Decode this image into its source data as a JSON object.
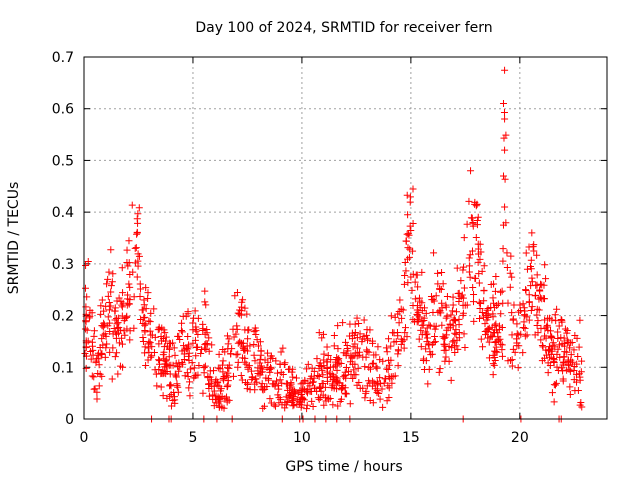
{
  "chart_data": {
    "type": "scatter",
    "title": "Day 100 of 2024, SRMTID for receiver fern",
    "xlabel": "GPS time / hours",
    "ylabel": "SRMTID / TECUs",
    "xlim": [
      0,
      24
    ],
    "ylim": [
      0,
      0.7
    ],
    "grid": true,
    "marker": "+",
    "color": "#ff0000",
    "x_ticks": [
      0,
      5,
      10,
      15,
      20
    ],
    "x_tick_labels": [
      "0",
      "5",
      "10",
      "15",
      "20"
    ],
    "y_ticks": [
      0,
      0.1,
      0.2,
      0.3,
      0.4,
      0.5,
      0.6,
      0.7
    ],
    "y_tick_labels": [
      "0",
      "0.1",
      "0.2",
      "0.3",
      "0.4",
      "0.5",
      "0.6",
      "0.7"
    ],
    "series": [
      {
        "name": "SRMTID",
        "profile_description_points": [
          [
            0.0,
            0.15
          ],
          [
            0.1,
            0.2
          ],
          [
            0.2,
            0.22
          ],
          [
            0.4,
            0.13
          ],
          [
            0.5,
            0.1
          ],
          [
            0.6,
            0.09
          ],
          [
            0.8,
            0.15
          ],
          [
            1.0,
            0.2
          ],
          [
            1.2,
            0.22
          ],
          [
            1.4,
            0.18
          ],
          [
            1.6,
            0.15
          ],
          [
            1.8,
            0.2
          ],
          [
            2.0,
            0.24
          ],
          [
            2.2,
            0.28
          ],
          [
            2.4,
            0.32
          ],
          [
            2.5,
            0.35
          ],
          [
            2.6,
            0.25
          ],
          [
            2.8,
            0.18
          ],
          [
            3.0,
            0.15
          ],
          [
            3.2,
            0.14
          ],
          [
            3.4,
            0.13
          ],
          [
            3.6,
            0.12
          ],
          [
            3.8,
            0.1
          ],
          [
            4.0,
            0.08
          ],
          [
            4.2,
            0.09
          ],
          [
            4.4,
            0.12
          ],
          [
            4.6,
            0.14
          ],
          [
            4.8,
            0.12
          ],
          [
            5.0,
            0.14
          ],
          [
            5.2,
            0.13
          ],
          [
            5.4,
            0.16
          ],
          [
            5.6,
            0.15
          ],
          [
            5.8,
            0.08
          ],
          [
            6.0,
            0.06
          ],
          [
            6.2,
            0.05
          ],
          [
            6.4,
            0.07
          ],
          [
            6.6,
            0.09
          ],
          [
            6.8,
            0.11
          ],
          [
            7.0,
            0.16
          ],
          [
            7.2,
            0.18
          ],
          [
            7.4,
            0.14
          ],
          [
            7.6,
            0.1
          ],
          [
            7.8,
            0.09
          ],
          [
            8.0,
            0.1
          ],
          [
            8.2,
            0.09
          ],
          [
            8.4,
            0.08
          ],
          [
            8.6,
            0.07
          ],
          [
            8.8,
            0.06
          ],
          [
            9.0,
            0.08
          ],
          [
            9.2,
            0.06
          ],
          [
            9.4,
            0.05
          ],
          [
            9.6,
            0.04
          ],
          [
            9.8,
            0.03
          ],
          [
            10.0,
            0.04
          ],
          [
            10.2,
            0.05
          ],
          [
            10.4,
            0.06
          ],
          [
            10.6,
            0.07
          ],
          [
            10.8,
            0.08
          ],
          [
            11.0,
            0.07
          ],
          [
            11.2,
            0.09
          ],
          [
            11.4,
            0.08
          ],
          [
            11.6,
            0.1
          ],
          [
            11.8,
            0.09
          ],
          [
            12.0,
            0.1
          ],
          [
            12.2,
            0.11
          ],
          [
            12.4,
            0.11
          ],
          [
            12.6,
            0.12
          ],
          [
            12.8,
            0.11
          ],
          [
            13.0,
            0.12
          ],
          [
            13.2,
            0.1
          ],
          [
            13.4,
            0.08
          ],
          [
            13.6,
            0.07
          ],
          [
            13.8,
            0.08
          ],
          [
            14.0,
            0.12
          ],
          [
            14.2,
            0.15
          ],
          [
            14.4,
            0.17
          ],
          [
            14.6,
            0.2
          ],
          [
            14.8,
            0.28
          ],
          [
            14.9,
            0.38
          ],
          [
            15.0,
            0.35
          ],
          [
            15.2,
            0.25
          ],
          [
            15.4,
            0.2
          ],
          [
            15.6,
            0.18
          ],
          [
            15.8,
            0.17
          ],
          [
            16.0,
            0.19
          ],
          [
            16.2,
            0.2
          ],
          [
            16.4,
            0.18
          ],
          [
            16.6,
            0.16
          ],
          [
            16.8,
            0.15
          ],
          [
            17.0,
            0.17
          ],
          [
            17.2,
            0.2
          ],
          [
            17.4,
            0.24
          ],
          [
            17.6,
            0.28
          ],
          [
            17.8,
            0.35
          ],
          [
            18.0,
            0.37
          ],
          [
            18.2,
            0.25
          ],
          [
            18.4,
            0.2
          ],
          [
            18.6,
            0.18
          ],
          [
            18.8,
            0.17
          ],
          [
            19.0,
            0.16
          ],
          [
            19.2,
            0.2
          ],
          [
            19.3,
            0.61
          ],
          [
            19.4,
            0.28
          ],
          [
            19.6,
            0.22
          ],
          [
            19.8,
            0.18
          ],
          [
            20.0,
            0.15
          ],
          [
            20.2,
            0.17
          ],
          [
            20.4,
            0.25
          ],
          [
            20.6,
            0.32
          ],
          [
            20.8,
            0.22
          ],
          [
            21.0,
            0.2
          ],
          [
            21.2,
            0.17
          ],
          [
            21.4,
            0.14
          ],
          [
            21.6,
            0.12
          ],
          [
            21.8,
            0.15
          ],
          [
            22.0,
            0.13
          ],
          [
            22.2,
            0.12
          ],
          [
            22.4,
            0.11
          ],
          [
            22.6,
            0.1
          ],
          [
            22.8,
            0.1
          ]
        ],
        "spikes": [
          [
            2.45,
            0.36
          ],
          [
            2.35,
            0.33
          ],
          [
            19.25,
            0.61
          ],
          [
            19.3,
            0.58
          ],
          [
            19.3,
            0.52
          ],
          [
            19.25,
            0.47
          ],
          [
            19.3,
            0.41
          ],
          [
            19.25,
            0.375
          ],
          [
            14.85,
            0.395
          ],
          [
            17.85,
            0.38
          ],
          [
            20.55,
            0.36
          ]
        ],
        "zero_markers": [
          3.1,
          3.9,
          4.0,
          5.5,
          6.1,
          6.8,
          9.1,
          9.9,
          10.05,
          10.6,
          11.1,
          11.6,
          12.2,
          17.4,
          20.05,
          21.8,
          21.9
        ]
      }
    ]
  }
}
